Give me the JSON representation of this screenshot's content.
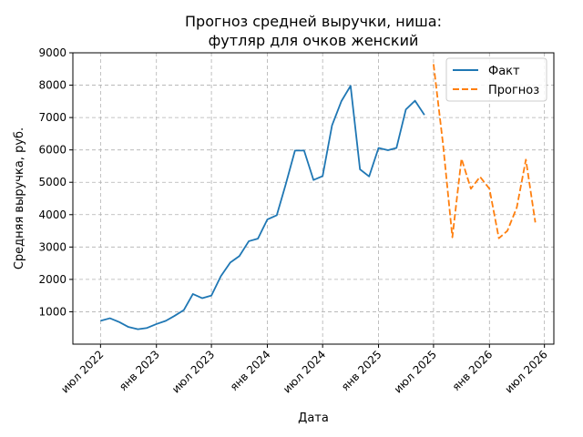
{
  "chart_data": {
    "type": "line",
    "title_lines": [
      "Прогноз средней выручки, ниша:",
      "футляр для очков женский"
    ],
    "xlabel": "Дата",
    "ylabel": "Средняя выручка, руб.",
    "x_ticks": [
      {
        "label": "июл 2022",
        "x": "2022-07-01"
      },
      {
        "label": "янв 2023",
        "x": "2023-01-01"
      },
      {
        "label": "июл 2023",
        "x": "2023-07-01"
      },
      {
        "label": "янв 2024",
        "x": "2024-01-01"
      },
      {
        "label": "июл 2024",
        "x": "2024-07-01"
      },
      {
        "label": "янв 2025",
        "x": "2025-01-01"
      },
      {
        "label": "июл 2025",
        "x": "2025-07-01"
      },
      {
        "label": "янв 2026",
        "x": "2026-01-01"
      },
      {
        "label": "июл 2026",
        "x": "2026-07-01"
      }
    ],
    "y_ticks": [
      1000,
      2000,
      3000,
      4000,
      5000,
      6000,
      7000,
      8000,
      9000
    ],
    "xlim": [
      "2022-04-01",
      "2026-08-01"
    ],
    "ylim": [
      0,
      9000
    ],
    "grid": true,
    "legend_position": "top-right",
    "series": [
      {
        "name": "Факт",
        "color": "#1f77b4",
        "dash": "solid",
        "points": [
          [
            "2022-07-01",
            720
          ],
          [
            "2022-08-01",
            800
          ],
          [
            "2022-09-01",
            680
          ],
          [
            "2022-10-01",
            530
          ],
          [
            "2022-11-01",
            460
          ],
          [
            "2022-12-01",
            500
          ],
          [
            "2023-01-01",
            620
          ],
          [
            "2023-02-01",
            720
          ],
          [
            "2023-03-01",
            870
          ],
          [
            "2023-04-01",
            1050
          ],
          [
            "2023-05-01",
            1550
          ],
          [
            "2023-06-01",
            1420
          ],
          [
            "2023-07-01",
            1500
          ],
          [
            "2023-08-01",
            2100
          ],
          [
            "2023-09-01",
            2520
          ],
          [
            "2023-10-01",
            2720
          ],
          [
            "2023-11-01",
            3180
          ],
          [
            "2023-12-01",
            3260
          ],
          [
            "2024-01-01",
            3850
          ],
          [
            "2024-02-01",
            3980
          ],
          [
            "2024-03-01",
            4920
          ],
          [
            "2024-04-01",
            5980
          ],
          [
            "2024-05-01",
            5980
          ],
          [
            "2024-06-01",
            5070
          ],
          [
            "2024-07-01",
            5190
          ],
          [
            "2024-08-01",
            6760
          ],
          [
            "2024-09-01",
            7510
          ],
          [
            "2024-10-01",
            7980
          ],
          [
            "2024-11-01",
            5400
          ],
          [
            "2024-12-01",
            5180
          ],
          [
            "2025-01-01",
            6060
          ],
          [
            "2025-02-01",
            5990
          ],
          [
            "2025-03-01",
            6060
          ],
          [
            "2025-04-01",
            7250
          ],
          [
            "2025-05-01",
            7520
          ],
          [
            "2025-06-01",
            7080
          ]
        ]
      },
      {
        "name": "Прогноз",
        "color": "#ff7f0e",
        "dash": "dashed",
        "points": [
          [
            "2025-07-01",
            8650
          ],
          [
            "2025-08-01",
            6200
          ],
          [
            "2025-09-01",
            3300
          ],
          [
            "2025-10-01",
            5730
          ],
          [
            "2025-11-01",
            4800
          ],
          [
            "2025-12-01",
            5170
          ],
          [
            "2026-01-01",
            4800
          ],
          [
            "2026-02-01",
            3270
          ],
          [
            "2026-03-01",
            3500
          ],
          [
            "2026-04-01",
            4220
          ],
          [
            "2026-05-01",
            5700
          ],
          [
            "2026-06-01",
            3760
          ]
        ]
      }
    ]
  }
}
